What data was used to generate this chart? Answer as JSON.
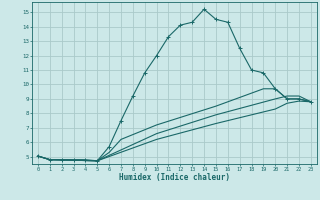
{
  "xlabel": "Humidex (Indice chaleur)",
  "xlim": [
    -0.5,
    23.5
  ],
  "ylim": [
    4.5,
    15.7
  ],
  "yticks": [
    5,
    6,
    7,
    8,
    9,
    10,
    11,
    12,
    13,
    14,
    15
  ],
  "xticks": [
    0,
    1,
    2,
    3,
    4,
    5,
    6,
    7,
    8,
    9,
    10,
    11,
    12,
    13,
    14,
    15,
    16,
    17,
    18,
    19,
    20,
    21,
    22,
    23
  ],
  "bg_color": "#cce8e8",
  "grid_color": "#aacaca",
  "line_color": "#1a6868",
  "main_line": {
    "x": [
      0,
      1,
      2,
      3,
      4,
      5,
      6,
      7,
      8,
      9,
      10,
      11,
      12,
      13,
      14,
      15,
      16,
      17,
      18,
      19,
      20,
      21,
      22,
      23
    ],
    "y": [
      5.05,
      4.8,
      4.8,
      4.8,
      4.8,
      4.72,
      5.7,
      7.5,
      9.2,
      10.8,
      12.0,
      13.3,
      14.1,
      14.3,
      15.2,
      14.5,
      14.3,
      12.5,
      11.0,
      10.8,
      9.7,
      9.0,
      9.0,
      8.8
    ]
  },
  "extra_lines": [
    {
      "x": [
        0,
        1,
        5,
        10,
        15,
        20,
        21,
        22,
        23
      ],
      "y": [
        5.05,
        4.8,
        4.72,
        6.2,
        7.3,
        8.3,
        8.7,
        8.85,
        8.8
      ]
    },
    {
      "x": [
        0,
        1,
        5,
        10,
        15,
        20,
        21,
        22,
        23
      ],
      "y": [
        5.05,
        4.8,
        4.72,
        6.6,
        7.9,
        9.0,
        9.2,
        9.2,
        8.8
      ]
    },
    {
      "x": [
        0,
        1,
        5,
        6,
        7,
        10,
        15,
        19,
        20,
        21,
        22,
        23
      ],
      "y": [
        5.05,
        4.8,
        4.72,
        5.3,
        6.2,
        7.2,
        8.5,
        9.7,
        9.7,
        9.0,
        9.0,
        8.8
      ]
    }
  ]
}
